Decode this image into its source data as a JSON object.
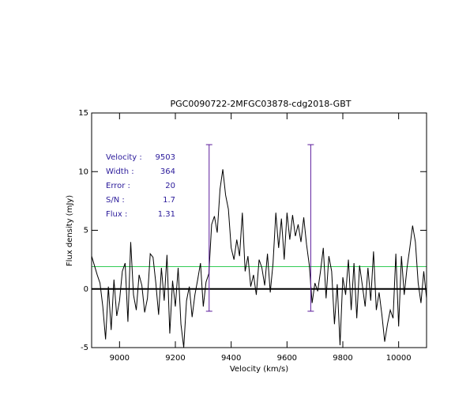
{
  "chart_data": {
    "type": "line",
    "title": "PGC0090722-2MFGC03878-cdg2018-GBT",
    "x_label": "Velocity (km/s)",
    "y_label": "Flux density (mJy)",
    "xlim": [
      8900,
      10100
    ],
    "ylim": [
      -5,
      15
    ],
    "xticks": [
      9000,
      9200,
      9400,
      9600,
      9800,
      10000
    ],
    "yticks": [
      -5,
      0,
      5,
      10,
      15
    ],
    "x": [
      8900,
      8910,
      8920,
      8930,
      8940,
      8950,
      8960,
      8970,
      8980,
      8990,
      9000,
      9010,
      9020,
      9030,
      9040,
      9050,
      9060,
      9070,
      9080,
      9090,
      9100,
      9110,
      9120,
      9130,
      9140,
      9150,
      9160,
      9170,
      9180,
      9190,
      9200,
      9210,
      9220,
      9230,
      9240,
      9250,
      9260,
      9270,
      9280,
      9290,
      9300,
      9310,
      9320,
      9330,
      9340,
      9350,
      9360,
      9370,
      9380,
      9390,
      9400,
      9410,
      9420,
      9430,
      9440,
      9450,
      9460,
      9470,
      9480,
      9490,
      9500,
      9510,
      9520,
      9530,
      9540,
      9550,
      9560,
      9570,
      9580,
      9590,
      9600,
      9610,
      9620,
      9630,
      9640,
      9650,
      9660,
      9670,
      9680,
      9690,
      9700,
      9710,
      9720,
      9730,
      9740,
      9750,
      9760,
      9770,
      9780,
      9790,
      9800,
      9810,
      9820,
      9830,
      9840,
      9850,
      9860,
      9870,
      9880,
      9890,
      9900,
      9910,
      9920,
      9930,
      9940,
      9950,
      9960,
      9970,
      9980,
      9990,
      10000,
      10010,
      10020,
      10030,
      10040,
      10050,
      10060,
      10070,
      10080,
      10090,
      10100
    ],
    "series": [
      {
        "name": "spectrum",
        "color": "#000000",
        "values": [
          2.8,
          2,
          1.2,
          0.5,
          -1.5,
          -4.3,
          0.2,
          -3.5,
          0.8,
          -2.3,
          -1,
          1.5,
          2.2,
          -2.8,
          4,
          -0.5,
          -1.8,
          1.2,
          0.3,
          -2,
          -0.8,
          3,
          2.7,
          0.5,
          -2.2,
          1.8,
          -1,
          2.9,
          -3.8,
          0.7,
          -1.5,
          1.8,
          -3,
          -5,
          -1,
          0.2,
          -2.4,
          -0.5,
          0.8,
          2.2,
          -1.5,
          0.6,
          1.3,
          5.5,
          6.2,
          4.8,
          8.5,
          10.2,
          8,
          6.8,
          3.5,
          2.5,
          4.2,
          2.8,
          6.5,
          1.5,
          2.8,
          0.2,
          1.2,
          -0.5,
          2.5,
          1.8,
          0.3,
          3,
          -0.3,
          2.2,
          6.5,
          3.5,
          6,
          2.5,
          6.5,
          4.2,
          6.3,
          4.5,
          5.5,
          4,
          6.1,
          3.8,
          2,
          -1.2,
          0.5,
          -0.2,
          1.5,
          3.5,
          -0.8,
          2.8,
          1.5,
          -3,
          0.4,
          -4.8,
          1,
          -0.5,
          2.5,
          -1.8,
          2.2,
          -2.5,
          2,
          0.3,
          -1.5,
          1.8,
          -1,
          3.2,
          -1.8,
          -0.3,
          -2.2,
          -4.5,
          -3,
          -1.8,
          -2.5,
          3,
          -3.2,
          2.8,
          -0.5,
          1.8,
          3.5,
          5.4,
          4,
          0.5,
          -1.2,
          1.5,
          -0.8
        ]
      }
    ],
    "zero_line_color": "#000000",
    "rms_level": 1.9,
    "rms_color": "#33cc55",
    "markers_x": [
      9321,
      9685
    ],
    "marker_range": [
      -1.9,
      12.3
    ],
    "marker_color": "#5a1a9a",
    "stats": [
      {
        "label": "Velocity :",
        "value": 9503
      },
      {
        "label": "Width :",
        "value": 364
      },
      {
        "label": "Error :",
        "value": 20
      },
      {
        "label": "S/N :",
        "value": 1.7
      },
      {
        "label": "Flux :",
        "value": 1.31
      }
    ]
  }
}
